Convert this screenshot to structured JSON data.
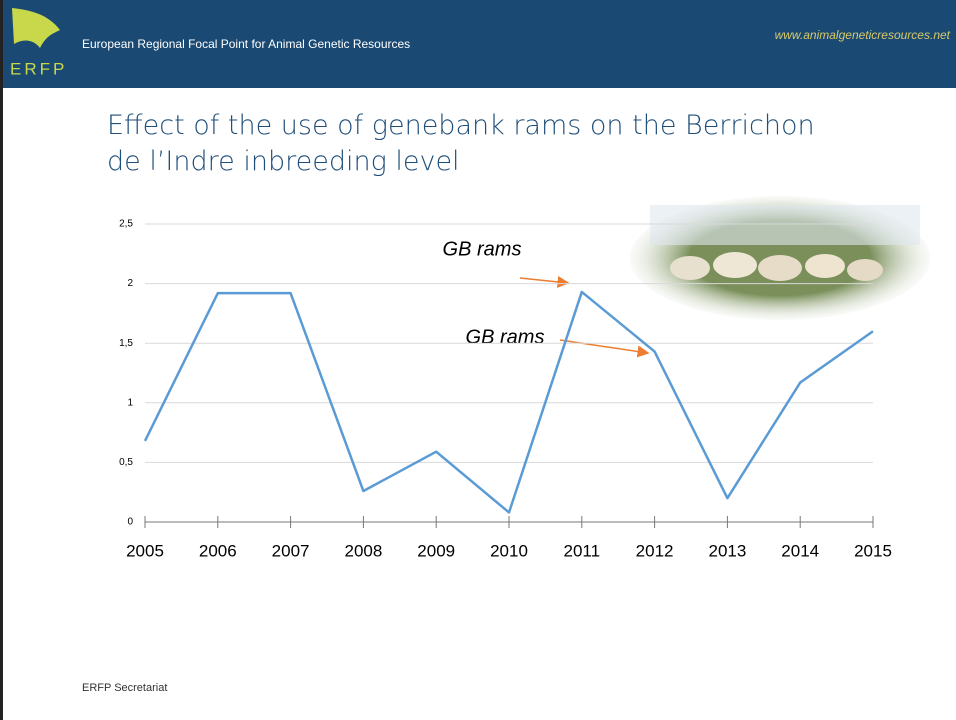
{
  "header": {
    "org": "European Regional Focal Point for Animal Genetic Resources",
    "url": "www.animalgeneticresources.net",
    "logo": "ERFP"
  },
  "chart_data": {
    "type": "line",
    "title": "Effect of the use of genebank rams on the Berrichon de l’Indre inbreeding level",
    "categories": [
      "2005",
      "2006",
      "2007",
      "2008",
      "2009",
      "2010",
      "2011",
      "2012",
      "2013",
      "2014",
      "2015"
    ],
    "series": [
      {
        "color": "#5b9bd5",
        "values": [
          0.68,
          1.92,
          1.92,
          0.26,
          0.59,
          0.08,
          1.93,
          1.43,
          0.2,
          1.17,
          1.6
        ]
      }
    ],
    "ylim": [
      0,
      2.5
    ],
    "yticks": [
      {
        "value": 0,
        "label": "0"
      },
      {
        "value": 0.5,
        "label": "0,5"
      },
      {
        "value": 1,
        "label": "1"
      },
      {
        "value": 1.5,
        "label": "1,5"
      },
      {
        "value": 2,
        "label": "2"
      },
      {
        "value": 2.5,
        "label": "2,5"
      }
    ],
    "grid": true,
    "annotations": [
      "GB rams",
      "GB rams"
    ]
  },
  "footer": "ERFP Secretariat"
}
